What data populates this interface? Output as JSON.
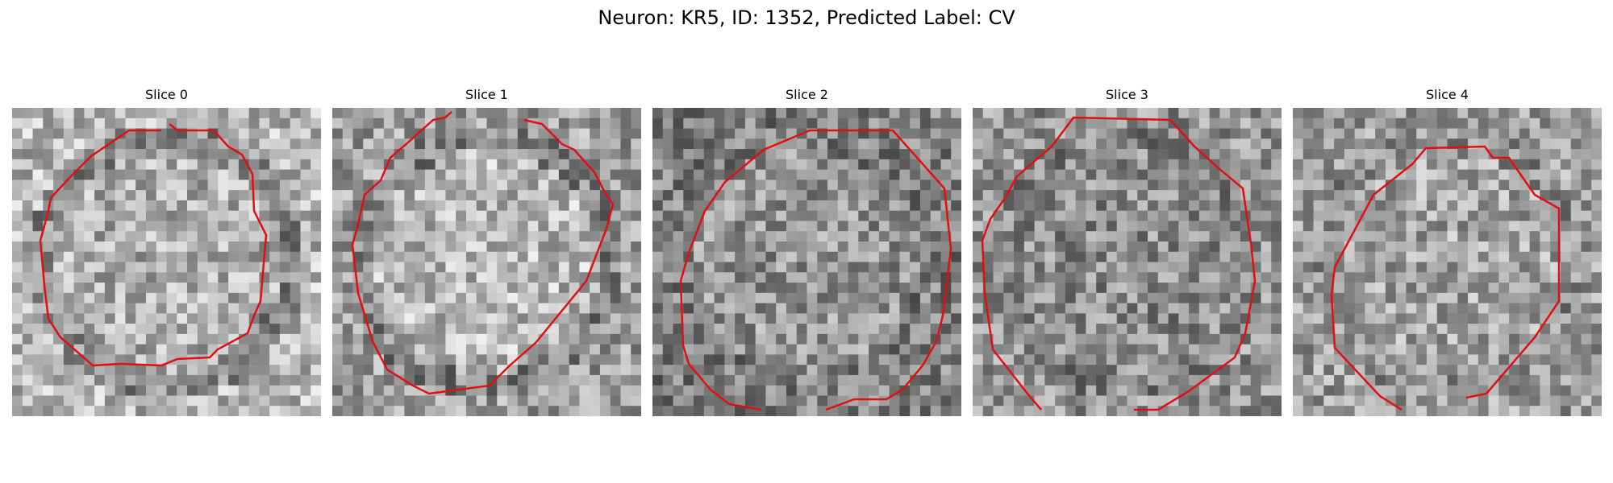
{
  "figure": {
    "title": "Neuron: KR5, ID: 1352, Predicted Label: CV"
  },
  "panels": [
    {
      "title": "Slice 0",
      "seed": 11,
      "gray_center": 0.68,
      "gray_edge": 0.72,
      "ring_dark": 0.42,
      "contour_color": "#e01010"
    },
    {
      "title": "Slice 1",
      "seed": 23,
      "gray_center": 0.72,
      "gray_edge": 0.62,
      "ring_dark": 0.4,
      "contour_color": "#e01010"
    },
    {
      "title": "Slice 2",
      "seed": 37,
      "gray_center": 0.58,
      "gray_edge": 0.5,
      "ring_dark": 0.38,
      "contour_color": "#e01010"
    },
    {
      "title": "Slice 3",
      "seed": 41,
      "gray_center": 0.55,
      "gray_edge": 0.58,
      "ring_dark": 0.4,
      "contour_color": "#e01010"
    },
    {
      "title": "Slice 4",
      "seed": 53,
      "gray_center": 0.64,
      "gray_edge": 0.62,
      "ring_dark": 0.44,
      "contour_color": "#e01010"
    }
  ]
}
